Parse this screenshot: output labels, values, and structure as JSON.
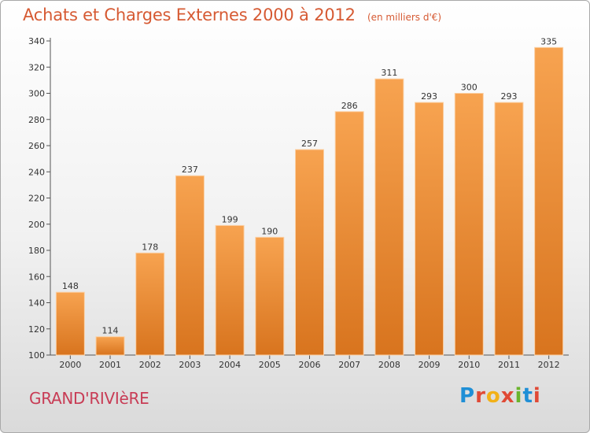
{
  "chart_data": {
    "type": "bar",
    "title": "Achats et Charges Externes 2000 à 2012",
    "subtitle": "(en milliers d'€)",
    "categories": [
      "2000",
      "2001",
      "2002",
      "2003",
      "2004",
      "2005",
      "2006",
      "2007",
      "2008",
      "2009",
      "2010",
      "2011",
      "2012"
    ],
    "values": [
      148,
      114,
      178,
      237,
      199,
      190,
      257,
      286,
      311,
      293,
      300,
      293,
      335
    ],
    "ylim": [
      100,
      340
    ],
    "yticks": [
      100,
      120,
      140,
      160,
      180,
      200,
      220,
      240,
      260,
      280,
      300,
      320,
      340
    ],
    "xlabel": "",
    "ylabel": "",
    "grid": false,
    "bar_color_top": "#f7a350",
    "bar_color_bottom": "#d8741e"
  },
  "footer": {
    "location": "GRAND'RIVIèRE",
    "logo_letters": [
      "P",
      "r",
      "o",
      "x",
      "i",
      "t",
      "i"
    ]
  }
}
